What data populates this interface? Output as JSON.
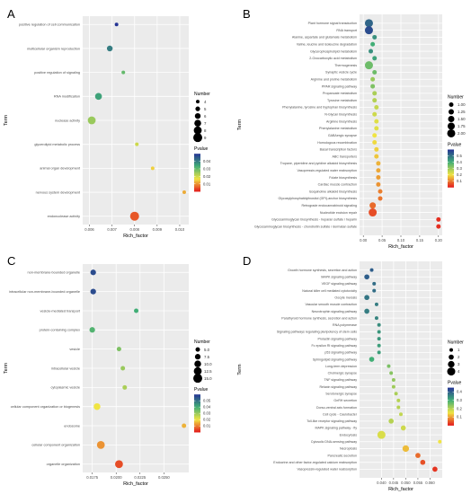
{
  "chart_data": [
    {
      "panel": "A",
      "type": "scatter",
      "title": "",
      "xlabel": "Rich_factor",
      "ylabel": "Term",
      "categories": [
        "positive regulation of cell communication",
        "multicellular organism reproduction",
        "positive regulation of signaling",
        "RNA modification",
        "nuclease activity",
        "glycerolipid metabolic process",
        "animal organ development",
        "nervous system development",
        "endonuclease activity"
      ],
      "points": [
        {
          "term": "positive regulation of cell communication",
          "rich_factor": 0.0072,
          "number": 4,
          "pvalue": 0.05
        },
        {
          "term": "multicellular organism reproduction",
          "rich_factor": 0.0069,
          "number": 6,
          "pvalue": 0.04
        },
        {
          "term": "positive regulation of signaling",
          "rich_factor": 0.0075,
          "number": 4,
          "pvalue": 0.03
        },
        {
          "term": "RNA modification",
          "rich_factor": 0.0064,
          "number": 7,
          "pvalue": 0.035
        },
        {
          "term": "nuclease activity",
          "rich_factor": 0.0061,
          "number": 8,
          "pvalue": 0.025
        },
        {
          "term": "glycerolipid metabolic process",
          "rich_factor": 0.0081,
          "number": 4,
          "pvalue": 0.02
        },
        {
          "term": "animal organ development",
          "rich_factor": 0.0088,
          "number": 4,
          "pvalue": 0.015
        },
        {
          "term": "nervous system development",
          "rich_factor": 0.0102,
          "number": 4,
          "pvalue": 0.012
        },
        {
          "term": "endonuclease activity",
          "rich_factor": 0.008,
          "number": 9,
          "pvalue": 0.005
        }
      ],
      "xlim": [
        0.0057,
        0.0104
      ],
      "xticks": [
        0.006,
        0.007,
        0.008,
        0.009,
        0.01
      ],
      "xtick_labels": [
        "0.006",
        "0.007",
        "0.008",
        "0.009",
        "0.010"
      ],
      "size_legend": {
        "title": "Number",
        "values": [
          4,
          5,
          6,
          7,
          8,
          9
        ]
      },
      "color_legend": {
        "title": "Pvalue",
        "range": [
          0.0,
          0.05
        ],
        "ticks": [
          0.01,
          0.02,
          0.03,
          0.04
        ],
        "tick_labels": [
          "0.01",
          "0.02",
          "0.03",
          "0.04"
        ]
      },
      "grid": true
    },
    {
      "panel": "B",
      "type": "scatter",
      "title": "",
      "xlabel": "Rich_factor",
      "ylabel": "Term",
      "categories": [
        "Plant hormone signal transduction",
        "RNA transport",
        "Alanine, aspartate and glutamate metabolism",
        "Valine, leucine and isoleucine degradation",
        "Glycerophospholipid metabolism",
        "2-Oxocarboxylic acid metabolism",
        "Thermogenesis",
        "Synaptic vesicle cycle",
        "Arginine and proline metabolism",
        "PPAR signaling pathway",
        "Propanoate metabolism",
        "Tyrosine metabolism",
        "Phenylalanine, tyrosine and tryptophan biosynthesis",
        "N-Glycan biosynthesis",
        "Arginine biosynthesis",
        "Phenylalanine metabolism",
        "GABAergic synapse",
        "Homologous recombination",
        "Basal transcription factors",
        "ABC transporters",
        "Tropane, piperidine and pyridine alkaloid biosynthesis",
        "Vasopressin-regulated water reabsorption",
        "Folate biosynthesis",
        "Cardiac muscle contraction",
        "Isoquinoline alkaloid biosynthesis",
        "Glycosylphosphatidylinositol (GPI)-anchor biosynthesis",
        "Retrograde endocannabinoid signaling",
        "Nucleotide excision repair",
        "Glycosaminoglycan biosynthesis - heparan sulfate / heparin",
        "Glycosaminoglycan biosynthesis - chondroitin sulfate / dermatan sulfate"
      ],
      "points": [
        {
          "term": "Plant hormone signal transduction",
          "rich_factor": 0.015,
          "number": 2.0,
          "pvalue": 0.52
        },
        {
          "term": "RNA transport",
          "rich_factor": 0.015,
          "number": 2.0,
          "pvalue": 0.56
        },
        {
          "term": "Alanine, aspartate and glutamate metabolism",
          "rich_factor": 0.03,
          "number": 1.0,
          "pvalue": 0.45
        },
        {
          "term": "Valine, leucine and isoleucine degradation",
          "rich_factor": 0.025,
          "number": 1.0,
          "pvalue": 0.4
        },
        {
          "term": "Glycerophospholipid metabolism",
          "rich_factor": 0.02,
          "number": 1.0,
          "pvalue": 0.45
        },
        {
          "term": "2-Oxocarboxylic acid metabolism",
          "rich_factor": 0.03,
          "number": 1.0,
          "pvalue": 0.42
        },
        {
          "term": "Thermogenesis",
          "rich_factor": 0.015,
          "number": 2.0,
          "pvalue": 0.35
        },
        {
          "term": "Synaptic vesicle cycle",
          "rich_factor": 0.03,
          "number": 1.0,
          "pvalue": 0.35
        },
        {
          "term": "Arginine and proline metabolism",
          "rich_factor": 0.025,
          "number": 1.0,
          "pvalue": 0.3
        },
        {
          "term": "PPAR signaling pathway",
          "rich_factor": 0.025,
          "number": 1.0,
          "pvalue": 0.33
        },
        {
          "term": "Propanoate metabolism",
          "rich_factor": 0.03,
          "number": 1.0,
          "pvalue": 0.28
        },
        {
          "term": "Tyrosine metabolism",
          "rich_factor": 0.03,
          "number": 1.0,
          "pvalue": 0.27
        },
        {
          "term": "Phenylalanine, tyrosine and tryptophan biosynthesis",
          "rich_factor": 0.035,
          "number": 1.0,
          "pvalue": 0.25
        },
        {
          "term": "N-Glycan biosynthesis",
          "rich_factor": 0.03,
          "number": 1.0,
          "pvalue": 0.24
        },
        {
          "term": "Arginine biosynthesis",
          "rich_factor": 0.035,
          "number": 1.0,
          "pvalue": 0.22
        },
        {
          "term": "Phenylalanine metabolism",
          "rich_factor": 0.035,
          "number": 1.0,
          "pvalue": 0.22
        },
        {
          "term": "GABAergic synapse",
          "rich_factor": 0.03,
          "number": 1.0,
          "pvalue": 0.2
        },
        {
          "term": "Homologous recombination",
          "rich_factor": 0.03,
          "number": 1.0,
          "pvalue": 0.19
        },
        {
          "term": "Basal transcription factors",
          "rich_factor": 0.035,
          "number": 1.0,
          "pvalue": 0.18
        },
        {
          "term": "ABC transporters",
          "rich_factor": 0.035,
          "number": 1.0,
          "pvalue": 0.17
        },
        {
          "term": "Tropane, piperidine and pyridine alkaloid biosynthesis",
          "rich_factor": 0.04,
          "number": 1.0,
          "pvalue": 0.15
        },
        {
          "term": "Vasopressin-regulated water reabsorption",
          "rich_factor": 0.04,
          "number": 1.0,
          "pvalue": 0.14
        },
        {
          "term": "Folate biosynthesis",
          "rich_factor": 0.04,
          "number": 1.0,
          "pvalue": 0.13
        },
        {
          "term": "Cardiac muscle contraction",
          "rich_factor": 0.04,
          "number": 1.0,
          "pvalue": 0.12
        },
        {
          "term": "Isoquinoline alkaloid biosynthesis",
          "rich_factor": 0.045,
          "number": 1.0,
          "pvalue": 0.1
        },
        {
          "term": "Glycosylphosphatidylinositol (GPI)-anchor biosynthesis",
          "rich_factor": 0.045,
          "number": 1.0,
          "pvalue": 0.09
        },
        {
          "term": "Retrograde endocannabinoid signaling",
          "rich_factor": 0.025,
          "number": 1.5,
          "pvalue": 0.08
        },
        {
          "term": "Nucleotide excision repair",
          "rich_factor": 0.025,
          "number": 2.0,
          "pvalue": 0.05
        },
        {
          "term": "Glycosaminoglycan biosynthesis - heparan sulfate / heparin",
          "rich_factor": 0.2,
          "number": 1.0,
          "pvalue": 0.02
        },
        {
          "term": "Glycosaminoglycan biosynthesis - chondroitin sulfate / dermatan sulfate",
          "rich_factor": 0.2,
          "number": 1.0,
          "pvalue": 0.02
        }
      ],
      "xlim": [
        -0.01,
        0.21
      ],
      "xticks": [
        0.0,
        0.05,
        0.1,
        0.15,
        0.2
      ],
      "xtick_labels": [
        "0.00",
        "0.05",
        "0.10",
        "0.15",
        "0.20"
      ],
      "size_legend": {
        "title": "Number",
        "values": [
          1.0,
          1.25,
          1.5,
          1.75,
          2.0
        ],
        "labels": [
          "1.00",
          "1.25",
          "1.50",
          "1.75",
          "2.00"
        ]
      },
      "color_legend": {
        "title": "Pvalue",
        "range": [
          0.0,
          0.6
        ],
        "ticks": [
          0.1,
          0.2,
          0.3,
          0.4,
          0.5
        ],
        "tick_labels": [
          "0.1",
          "0.2",
          "0.3",
          "0.4",
          "0.5"
        ]
      },
      "grid": true
    },
    {
      "panel": "C",
      "type": "scatter",
      "title": "",
      "xlabel": "Rich_factor",
      "ylabel": "Term",
      "categories": [
        "non-membrane-bounded organelle",
        "intracellular non-membrane-bounded organelle",
        "vesicle-mediated transport",
        "protein-containing complex",
        "vesicle",
        "intracellular vesicle",
        "cytoplasmic vesicle",
        "cellular component organization or biogenesis",
        "endosome",
        "cellular component organization",
        "organelle organization"
      ],
      "points": [
        {
          "term": "non-membrane-bounded organelle",
          "rich_factor": 0.0176,
          "number": 7.5,
          "pvalue": 0.056
        },
        {
          "term": "intracellular non-membrane-bounded organelle",
          "rich_factor": 0.0176,
          "number": 7.5,
          "pvalue": 0.056
        },
        {
          "term": "vesicle-mediated transport",
          "rich_factor": 0.0221,
          "number": 5.0,
          "pvalue": 0.04
        },
        {
          "term": "protein-containing complex",
          "rich_factor": 0.0175,
          "number": 7.5,
          "pvalue": 0.038
        },
        {
          "term": "vesicle",
          "rich_factor": 0.0203,
          "number": 5.0,
          "pvalue": 0.033
        },
        {
          "term": "intracellular vesicle",
          "rich_factor": 0.0207,
          "number": 5.0,
          "pvalue": 0.03
        },
        {
          "term": "cytoplasmic vesicle",
          "rich_factor": 0.0209,
          "number": 5.0,
          "pvalue": 0.028
        },
        {
          "term": "cellular component organization or biogenesis",
          "rich_factor": 0.018,
          "number": 10.0,
          "pvalue": 0.02
        },
        {
          "term": "endosome",
          "rich_factor": 0.0271,
          "number": 5.0,
          "pvalue": 0.015
        },
        {
          "term": "cellular component organization",
          "rich_factor": 0.0184,
          "number": 12.5,
          "pvalue": 0.012
        },
        {
          "term": "organelle organization",
          "rich_factor": 0.0203,
          "number": 12.5,
          "pvalue": 0.005
        }
      ],
      "xlim": [
        0.0165,
        0.0276
      ],
      "xticks": [
        0.0175,
        0.02,
        0.0225,
        0.025
      ],
      "xtick_labels": [
        "0.0175",
        "0.0200",
        "0.0225",
        "0.0250"
      ],
      "size_legend": {
        "title": "Number",
        "values": [
          5.0,
          7.5,
          10.0,
          12.5,
          15.0
        ],
        "labels": [
          "5.0",
          "7.5",
          "10.0",
          "12.5",
          "15.0"
        ]
      },
      "color_legend": {
        "title": "Pvalue",
        "range": [
          0.0,
          0.06
        ],
        "ticks": [
          0.01,
          0.02,
          0.03,
          0.04,
          0.05
        ],
        "tick_labels": [
          "0.01",
          "0.02",
          "0.03",
          "0.04",
          "0.05"
        ]
      },
      "grid": true
    },
    {
      "panel": "D",
      "type": "scatter",
      "title": "",
      "xlabel": "Rich_factor",
      "ylabel": "Term",
      "categories": [
        "Growth hormone synthesis, secretion and action",
        "MAPK signaling pathway",
        "VEGF signaling pathway",
        "Natural killer cell mediated cytotoxicity",
        "Oocyte meiosis",
        "Vascular smooth muscle contraction",
        "Neurotrophin signaling pathway",
        "Parathyroid hormone synthesis, secretion and action",
        "RNA polymerase",
        "Signaling pathways regulating pluripotency of stem cells",
        "Prolactin signaling pathway",
        "Fc epsilon RI signaling pathway",
        "p53 signaling pathway",
        "Sphingolipid signaling pathway",
        "Long-term depression",
        "Cholinergic synapse",
        "TNF signaling pathway",
        "Relaxin signaling pathway",
        "Serotonergic synapse",
        "GnRH secretion",
        "Dorso-ventral axis formation",
        "Cell cycle - Caulobacter",
        "Toll-like receptor signaling pathway",
        "MAPK signaling pathway - fly",
        "Endocytosis",
        "Cytosolic DNA-sensing pathway",
        "Necroptosis",
        "Pancreatic secretion",
        "Endocrine and other factor-regulated calcium reabsorption",
        "Vasopressin-regulated water reabsorption"
      ],
      "points": [
        {
          "term": "Growth hormone synthesis, secretion and action",
          "rich_factor": 0.036,
          "number": 1,
          "pvalue": 0.4
        },
        {
          "term": "MAPK signaling pathway",
          "rich_factor": 0.034,
          "number": 2,
          "pvalue": 0.4
        },
        {
          "term": "VEGF signaling pathway",
          "rich_factor": 0.037,
          "number": 1,
          "pvalue": 0.38
        },
        {
          "term": "Natural killer cell mediated cytotoxicity",
          "rich_factor": 0.037,
          "number": 1,
          "pvalue": 0.38
        },
        {
          "term": "Oocyte meiosis",
          "rich_factor": 0.034,
          "number": 2,
          "pvalue": 0.37
        },
        {
          "term": "Vascular smooth muscle contraction",
          "rich_factor": 0.038,
          "number": 1,
          "pvalue": 0.36
        },
        {
          "term": "Neurotrophin signaling pathway",
          "rich_factor": 0.034,
          "number": 2,
          "pvalue": 0.36
        },
        {
          "term": "Parathyroid hormone synthesis, secretion and action",
          "rich_factor": 0.038,
          "number": 1,
          "pvalue": 0.35
        },
        {
          "term": "RNA polymerase",
          "rich_factor": 0.039,
          "number": 1,
          "pvalue": 0.34
        },
        {
          "term": "Signaling pathways regulating pluripotency of stem cells",
          "rich_factor": 0.039,
          "number": 1,
          "pvalue": 0.33
        },
        {
          "term": "Prolactin signaling pathway",
          "rich_factor": 0.039,
          "number": 1,
          "pvalue": 0.33
        },
        {
          "term": "Fc epsilon RI signaling pathway",
          "rich_factor": 0.039,
          "number": 1,
          "pvalue": 0.32
        },
        {
          "term": "p53 signaling pathway",
          "rich_factor": 0.039,
          "number": 1,
          "pvalue": 0.32
        },
        {
          "term": "Sphingolipid signaling pathway",
          "rich_factor": 0.036,
          "number": 2,
          "pvalue": 0.3
        },
        {
          "term": "Long-term depression",
          "rich_factor": 0.043,
          "number": 1,
          "pvalue": 0.25
        },
        {
          "term": "Cholinergic synapse",
          "rich_factor": 0.044,
          "number": 1,
          "pvalue": 0.24
        },
        {
          "term": "TNF signaling pathway",
          "rich_factor": 0.045,
          "number": 1,
          "pvalue": 0.23
        },
        {
          "term": "Relaxin signaling pathway",
          "rich_factor": 0.045,
          "number": 1,
          "pvalue": 0.22
        },
        {
          "term": "Serotonergic synapse",
          "rich_factor": 0.046,
          "number": 1,
          "pvalue": 0.21
        },
        {
          "term": "GnRH secretion",
          "rich_factor": 0.047,
          "number": 1,
          "pvalue": 0.2
        },
        {
          "term": "Dorso-ventral axis formation",
          "rich_factor": 0.047,
          "number": 1,
          "pvalue": 0.2
        },
        {
          "term": "Cell cycle - Caulobacter",
          "rich_factor": 0.048,
          "number": 1,
          "pvalue": 0.19
        },
        {
          "term": "Toll-like receptor signaling pathway",
          "rich_factor": 0.044,
          "number": 2,
          "pvalue": 0.2
        },
        {
          "term": "MAPK signaling pathway - fly",
          "rich_factor": 0.049,
          "number": 2,
          "pvalue": 0.18
        },
        {
          "term": "Endocytosis",
          "rich_factor": 0.04,
          "number": 4,
          "pvalue": 0.17
        },
        {
          "term": "Cytosolic DNA-sensing pathway",
          "rich_factor": 0.064,
          "number": 1,
          "pvalue": 0.15
        },
        {
          "term": "Necroptosis",
          "rich_factor": 0.05,
          "number": 3,
          "pvalue": 0.12
        },
        {
          "term": "Pancreatic secretion",
          "rich_factor": 0.055,
          "number": 2,
          "pvalue": 0.06
        },
        {
          "term": "Endocrine and other factor-regulated calcium reabsorption",
          "rich_factor": 0.057,
          "number": 2,
          "pvalue": 0.04
        },
        {
          "term": "Vasopressin-regulated water reabsorption",
          "rich_factor": 0.062,
          "number": 2,
          "pvalue": 0.02
        }
      ],
      "xlim": [
        0.031,
        0.065
      ],
      "xticks": [
        0.04,
        0.045,
        0.05,
        0.055,
        0.06
      ],
      "xtick_labels": [
        "0.040",
        "0.045",
        "0.050",
        "0.055",
        "0.060"
      ],
      "size_legend": {
        "title": "Number",
        "values": [
          1,
          2,
          3,
          4
        ],
        "labels": [
          "1",
          "2",
          "3",
          "4"
        ]
      },
      "color_legend": {
        "title": "Pvalue",
        "range": [
          0.0,
          0.45
        ],
        "ticks": [
          0.1,
          0.2,
          0.3,
          0.4
        ],
        "tick_labels": [
          "0.1",
          "0.2",
          "0.3",
          "0.4"
        ]
      },
      "grid": true
    }
  ],
  "colors": {
    "panel_background": "#ebebeb",
    "grid_major": "#ffffff",
    "pvalue_low": "#e31a1c",
    "pvalue_mid": "#f0e442",
    "pvalue_midhigh": "#41ae76",
    "pvalue_high": "#253494"
  }
}
